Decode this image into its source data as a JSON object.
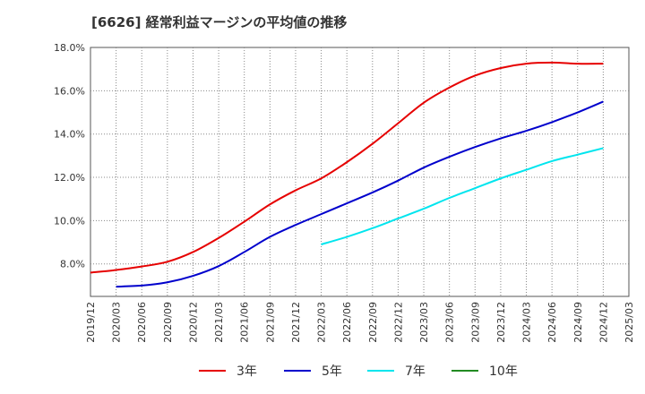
{
  "chart_data": {
    "type": "line",
    "title": "[6626]  経常利益マージンの平均値の推移",
    "xlabel": "",
    "ylabel": "",
    "ylim": [
      6.5,
      18.0
    ],
    "yticks": [
      8.0,
      10.0,
      12.0,
      14.0,
      16.0,
      18.0
    ],
    "ytick_labels": [
      "8.0%",
      "10.0%",
      "12.0%",
      "14.0%",
      "16.0%",
      "18.0%"
    ],
    "xtick_labels": [
      "2019/12",
      "2020/03",
      "2020/06",
      "2020/09",
      "2020/12",
      "2021/03",
      "2021/06",
      "2021/09",
      "2021/12",
      "2022/03",
      "2022/06",
      "2022/09",
      "2022/12",
      "2023/03",
      "2023/06",
      "2023/09",
      "2023/12",
      "2024/03",
      "2024/06",
      "2024/09",
      "2024/12",
      "2025/03"
    ],
    "grid": true,
    "legend_position": "bottom",
    "series": [
      {
        "name": "3年",
        "color": "#e60000",
        "start_index": 0,
        "values": [
          7.6,
          7.72,
          7.88,
          8.1,
          8.55,
          9.2,
          9.95,
          10.75,
          11.4,
          11.95,
          12.7,
          13.55,
          14.5,
          15.45,
          16.15,
          16.7,
          17.05,
          17.25,
          17.3,
          17.25,
          17.25
        ]
      },
      {
        "name": "5年",
        "color": "#0000cc",
        "start_index": 1,
        "values": [
          6.95,
          7.0,
          7.15,
          7.45,
          7.9,
          8.55,
          9.25,
          9.8,
          10.3,
          10.8,
          11.3,
          11.85,
          12.45,
          12.95,
          13.4,
          13.8,
          14.15,
          14.55,
          15.0,
          15.5
        ]
      },
      {
        "name": "7年",
        "color": "#00e5ee",
        "start_index": 9,
        "values": [
          8.9,
          9.25,
          9.65,
          10.1,
          10.55,
          11.05,
          11.5,
          11.95,
          12.35,
          12.75,
          13.05,
          13.35
        ]
      },
      {
        "name": "10年",
        "color": "#228b22",
        "start_index": 0,
        "values": []
      }
    ]
  }
}
